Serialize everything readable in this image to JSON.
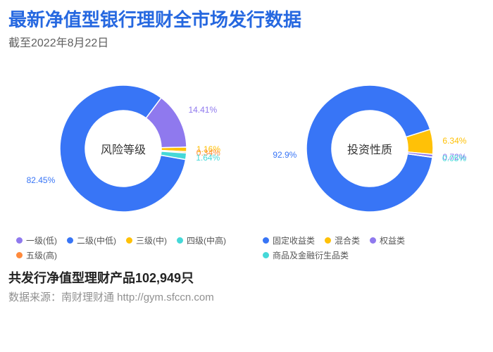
{
  "title": "最新净值型银行理财全市场发行数据",
  "subtitle": "截至2022年8月22日",
  "summary": "共发行净值型理财产品102,949只",
  "source": "数据来源：南财理财通 http://gym.sfccn.com",
  "chart1": {
    "type": "donut",
    "center_label": "风险等级",
    "background": "#ffffff",
    "inner_radius_ratio": 0.6,
    "label_fontsize": 12,
    "slices": [
      {
        "name": "二级(中低)",
        "value": 82.45,
        "label": "82.45%",
        "color": "#3875f6"
      },
      {
        "name": "一级(低)",
        "value": 14.41,
        "label": "14.41%",
        "color": "#8f79ee"
      },
      {
        "name": "三级(中)",
        "value": 1.16,
        "label": "1.16%",
        "color": "#ffc107"
      },
      {
        "name": "四级(中高)",
        "value": 0.34,
        "label": "0.34%",
        "color": "#ff8a3c"
      },
      {
        "name": "五级(高)",
        "value": 1.64,
        "label": "1.64%",
        "color": "#45d8d8"
      }
    ],
    "legend_order": [
      {
        "name": "一级(低)",
        "color": "#8f79ee"
      },
      {
        "name": "二级(中低)",
        "color": "#3875f6"
      },
      {
        "name": "三级(中)",
        "color": "#ffc107"
      },
      {
        "name": "四级(中高)",
        "color": "#45d8d8"
      },
      {
        "name": "五级(高)",
        "color": "#ff8a3c"
      }
    ],
    "start_angle_deg": 100
  },
  "chart2": {
    "type": "donut",
    "center_label": "投资性质",
    "background": "#ffffff",
    "inner_radius_ratio": 0.6,
    "label_fontsize": 12,
    "slices": [
      {
        "name": "固定收益类",
        "value": 92.9,
        "label": "92.9%",
        "color": "#3875f6"
      },
      {
        "name": "混合类",
        "value": 6.34,
        "label": "6.34%",
        "color": "#ffc107"
      },
      {
        "name": "权益类",
        "value": 0.72,
        "label": "0.72%",
        "color": "#8f79ee"
      },
      {
        "name": "商品及金融衍生品类",
        "value": 0.05,
        "label": "0.05%",
        "color": "#45d8d8"
      }
    ],
    "legend_order": [
      {
        "name": "固定收益类",
        "color": "#3875f6"
      },
      {
        "name": "混合类",
        "color": "#ffc107"
      },
      {
        "name": "权益类",
        "color": "#8f79ee"
      },
      {
        "name": "商品及金融衍生品类",
        "color": "#45d8d8"
      }
    ],
    "start_angle_deg": 98
  }
}
